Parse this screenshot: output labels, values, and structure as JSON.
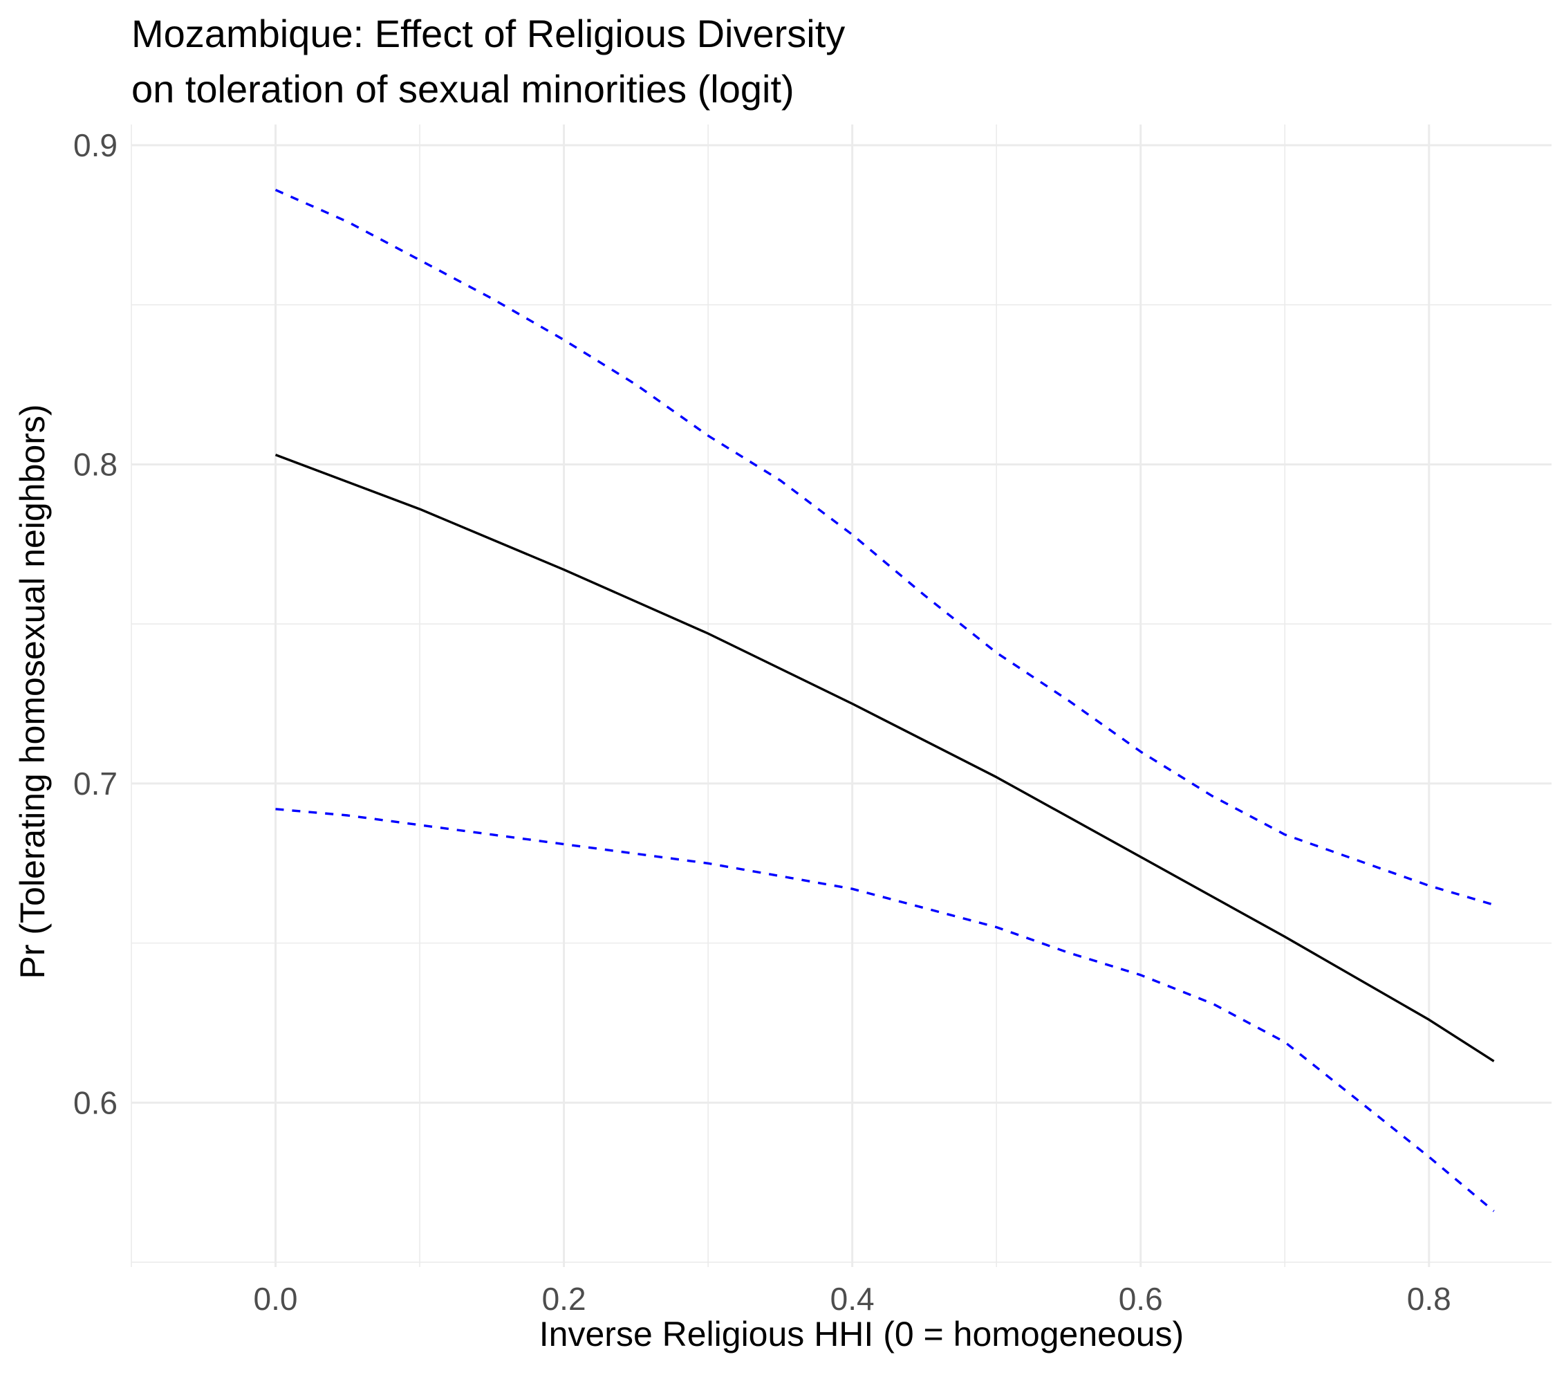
{
  "chart_data": {
    "type": "line",
    "title": "Mozambique: Effect of Religious Diversity",
    "subtitle": "on toleration of sexual minorities (logit)",
    "xlabel": "Inverse Religious HHI (0 = homogeneous)",
    "ylabel": "Pr (Tolerating homosexual neighbors)",
    "xlim": [
      -0.1,
      0.885
    ],
    "ylim": [
      0.5485,
      0.9065
    ],
    "x_ticks": [
      0.0,
      0.2,
      0.4,
      0.6,
      0.8
    ],
    "x_tick_labels": [
      "0.0",
      "0.2",
      "0.4",
      "0.6",
      "0.8"
    ],
    "y_ticks": [
      0.6,
      0.7,
      0.8,
      0.9
    ],
    "y_tick_labels": [
      "0.6",
      "0.7",
      "0.8",
      "0.9"
    ],
    "grid": true,
    "legend": "none",
    "series": [
      {
        "role": "estimate",
        "color": "#000000",
        "dash": "solid",
        "x": [
          0.0,
          0.1,
          0.2,
          0.3,
          0.4,
          0.5,
          0.6,
          0.7,
          0.8,
          0.845
        ],
        "values": [
          0.803,
          0.786,
          0.767,
          0.747,
          0.725,
          0.702,
          0.677,
          0.652,
          0.626,
          0.613
        ]
      },
      {
        "role": "upper-bound",
        "color": "#0000ff",
        "dash": "dashed",
        "x": [
          0.0,
          0.05,
          0.1,
          0.15,
          0.2,
          0.25,
          0.3,
          0.35,
          0.4,
          0.45,
          0.5,
          0.55,
          0.6,
          0.65,
          0.7,
          0.75,
          0.8,
          0.845
        ],
        "values": [
          0.886,
          0.876,
          0.864,
          0.852,
          0.839,
          0.825,
          0.809,
          0.795,
          0.778,
          0.759,
          0.741,
          0.726,
          0.71,
          0.696,
          0.684,
          0.676,
          0.668,
          0.662
        ]
      },
      {
        "role": "lower-bound",
        "color": "#0000ff",
        "dash": "dashed",
        "x": [
          0.0,
          0.05,
          0.1,
          0.15,
          0.2,
          0.25,
          0.3,
          0.35,
          0.4,
          0.45,
          0.5,
          0.55,
          0.6,
          0.65,
          0.7,
          0.75,
          0.8,
          0.845
        ],
        "values": [
          0.692,
          0.69,
          0.687,
          0.684,
          0.681,
          0.678,
          0.675,
          0.671,
          0.667,
          0.661,
          0.655,
          0.647,
          0.64,
          0.631,
          0.619,
          0.601,
          0.583,
          0.566
        ]
      }
    ]
  }
}
